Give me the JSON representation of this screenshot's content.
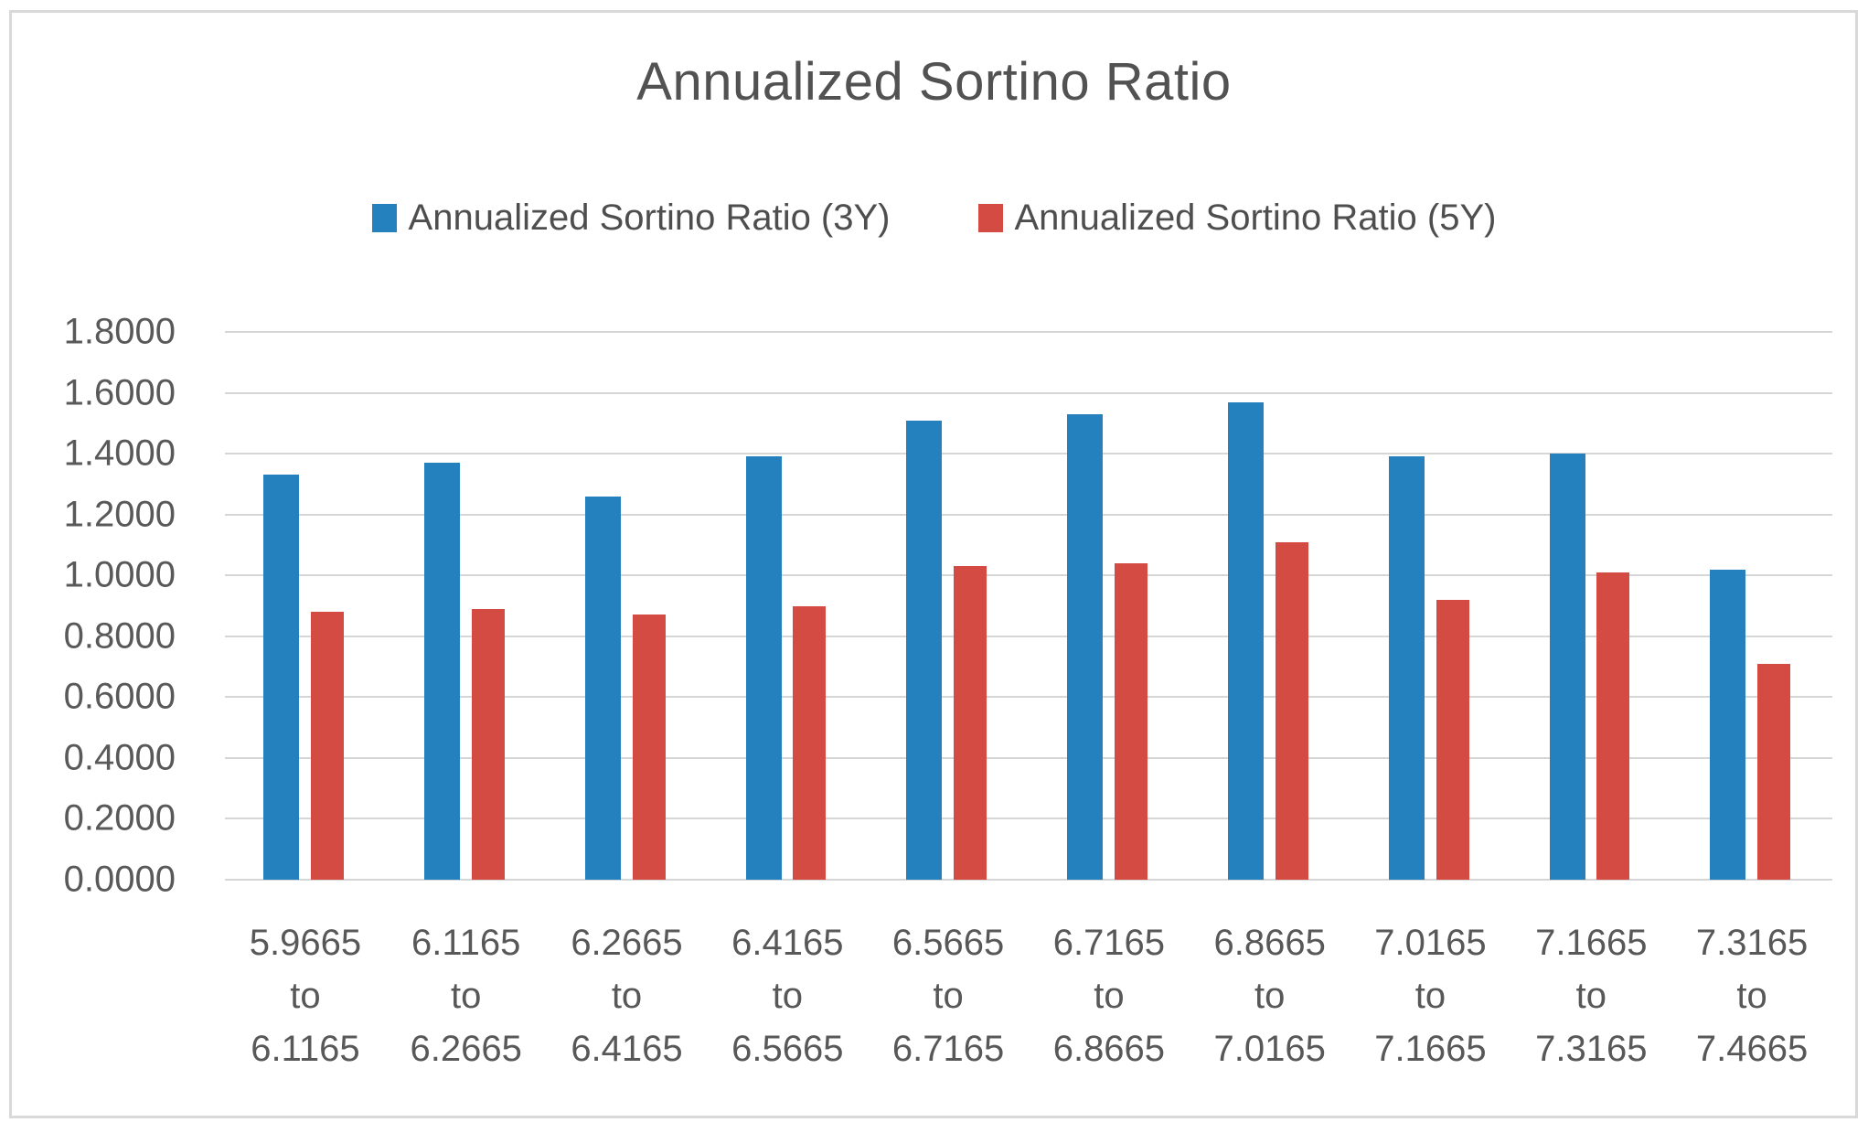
{
  "title": "Annualized Sortino Ratio",
  "chart_data": {
    "type": "bar",
    "title": "Annualized Sortino Ratio",
    "categories": [
      "5.9665 to 6.1165",
      "6.1165 to 6.2665",
      "6.2665 to 6.4165",
      "6.4165 to 6.5665",
      "6.5665 to 6.7165",
      "6.7165 to 6.8665",
      "6.8665 to 7.0165",
      "7.0165 to 7.1665",
      "7.1665 to 7.3165",
      "7.3165 to 7.4665"
    ],
    "series": [
      {
        "name": "Annualized Sortino Ratio (3Y)",
        "color": "#2580be",
        "values": [
          1.33,
          1.37,
          1.26,
          1.39,
          1.51,
          1.53,
          1.57,
          1.39,
          1.4,
          1.02
        ]
      },
      {
        "name": "Annualized Sortino Ratio (5Y)",
        "color": "#d34b43",
        "values": [
          0.88,
          0.89,
          0.87,
          0.9,
          1.03,
          1.04,
          1.11,
          0.92,
          1.01,
          0.71
        ]
      }
    ],
    "xlabel": "",
    "ylabel": "",
    "ylim": [
      0,
      1.8
    ],
    "ytick_step": 0.2,
    "ytick_decimals": 4,
    "grid": true,
    "legend_position": "top"
  },
  "colors": {
    "grid": "#d6d6d6",
    "border": "#d9d9d9",
    "title_text": "#525252",
    "axis_text": "#595959",
    "background": "#ffffff"
  }
}
